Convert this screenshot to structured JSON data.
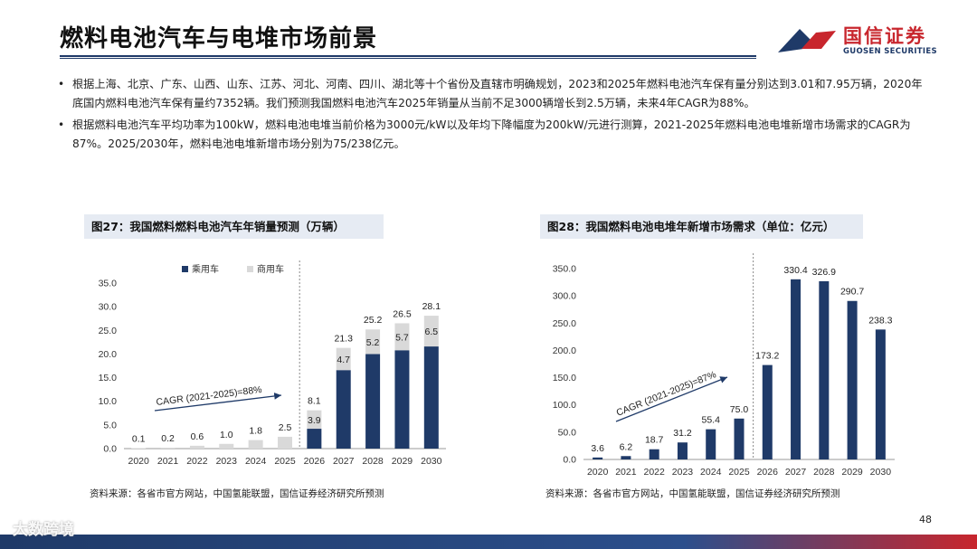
{
  "title": "燃料电池汽车与电堆市场前景",
  "logo": {
    "cn": "国信证券",
    "en": "GUOSEN SECURITIES"
  },
  "bullets": [
    "根据上海、北京、广东、山西、山东、江苏、河北、河南、四川、湖北等十个省份及直辖市明确规划，2023和2025年燃料电池汽车保有量分别达到3.01和7.95万辆，2020年底国内燃料电池汽车保有量约7352辆。我们预测我国燃料电池汽车2025年销量从当前不足3000辆增长到2.5万辆，未来4年CAGR为88%。",
    "根据燃料电池汽车平均功率为100kW，燃料电池电堆当前价格为3000元/kW以及年均下降幅度为200kW/元进行测算，2021-2025年燃料电池电堆新增市场需求的CAGR为87%。2025/2030年，燃料电池电堆新增市场分别为75/238亿元。"
  ],
  "bullet_dot": "•",
  "colors": {
    "primary": "#1f3a68",
    "secondary": "#d9d9d9",
    "accent": "#c8262d"
  },
  "chart_data": [
    {
      "type": "bar",
      "header": "图27：我国燃料燃料电池汽车年销量预测（万辆）",
      "stacked": true,
      "categories": [
        "2020",
        "2021",
        "2022",
        "2023",
        "2024",
        "2025",
        "2026",
        "2027",
        "2028",
        "2029",
        "2030"
      ],
      "series": [
        {
          "name": "乘用车",
          "values": [
            0,
            0,
            0,
            0,
            0,
            0,
            4.2,
            16.6,
            20.0,
            20.8,
            21.6
          ]
        },
        {
          "name": "商用车",
          "values": [
            0.1,
            0.2,
            0.6,
            1.0,
            1.8,
            2.5,
            3.9,
            4.7,
            5.2,
            5.7,
            6.5
          ]
        }
      ],
      "top_labels": [
        "0.1",
        "0.2",
        "0.6",
        "1.0",
        "1.8",
        "2.5",
        "8.1",
        "21.3",
        "25.2",
        "26.5",
        "28.1"
      ],
      "segment_labels": [
        "",
        "",
        "",
        "",
        "",
        "",
        "3.9",
        "4.7",
        "5.2",
        "5.7",
        "6.5"
      ],
      "ylim": [
        0,
        35
      ],
      "yticks": [
        "0.0",
        "5.0",
        "10.0",
        "15.0",
        "20.0",
        "25.0",
        "30.0",
        "35.0"
      ],
      "legend": "top-center",
      "annotation": "CAGR (2021-2025)=88%",
      "source": "资料来源：各省市官方网站，中国氢能联盟，国信证券经济研究所预测"
    },
    {
      "type": "bar",
      "header": "图28：我国燃料电池电堆年新增市场需求（单位：亿元）",
      "categories": [
        "2020",
        "2021",
        "2022",
        "2023",
        "2024",
        "2025",
        "2026",
        "2027",
        "2028",
        "2029",
        "2030"
      ],
      "values": [
        3.6,
        6.2,
        18.7,
        31.2,
        55.4,
        75.0,
        173.2,
        330.4,
        326.9,
        290.7,
        238.3
      ],
      "labels": [
        "3.6",
        "6.2",
        "18.7",
        "31.2",
        "55.4",
        "75.0",
        "173.2",
        "330.4",
        "326.9",
        "290.7",
        "238.3"
      ],
      "ylim": [
        0,
        350
      ],
      "yticks": [
        "0.0",
        "50.0",
        "100.0",
        "150.0",
        "200.0",
        "250.0",
        "300.0",
        "350.0"
      ],
      "annotation": "CAGR (2021-2025)=87%",
      "source": "资料来源：各省市官方网站，中国氢能联盟，国信证券经济研究所预测"
    }
  ],
  "page_number": "48",
  "watermark": "大数跨境"
}
